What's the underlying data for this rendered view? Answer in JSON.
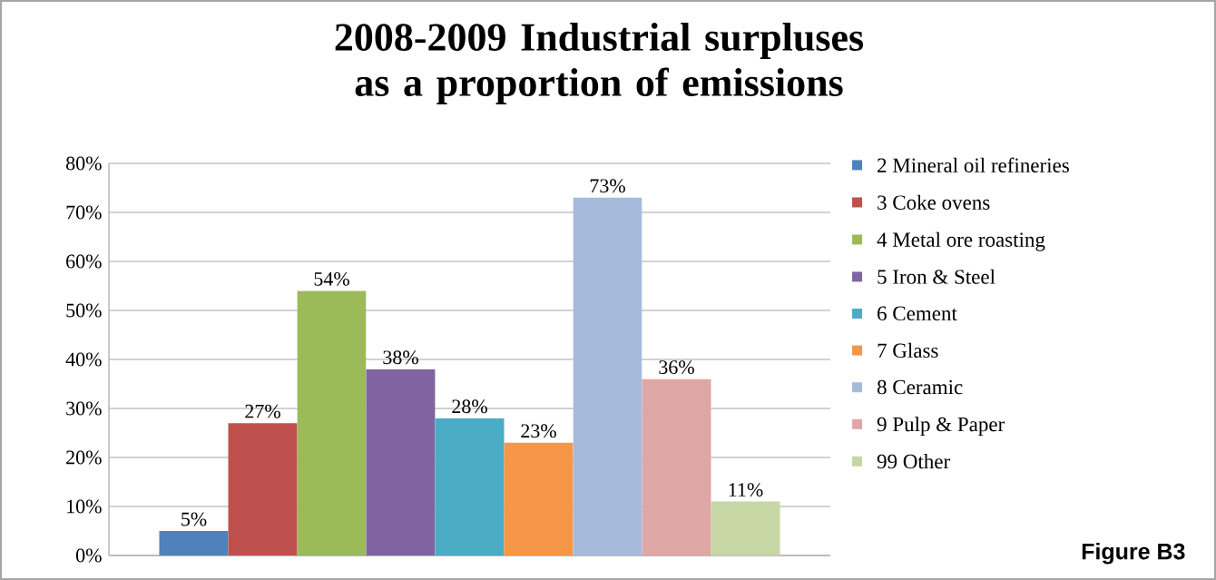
{
  "chart_data": {
    "type": "bar",
    "title": "2008-2009 Industrial surpluses as a proportion of emissions",
    "categories": [
      null
    ],
    "series": [
      {
        "name": "2 Mineral oil refineries",
        "color": "#4f81bd",
        "values": [
          5
        ],
        "value_labels": [
          "5%"
        ]
      },
      {
        "name": "3 Coke ovens",
        "color": "#c0504d",
        "values": [
          27
        ],
        "value_labels": [
          "27%"
        ]
      },
      {
        "name": "4 Metal ore roasting",
        "color": "#9bbb59",
        "values": [
          54
        ],
        "value_labels": [
          "54%"
        ]
      },
      {
        "name": "5 Iron & Steel",
        "color": "#8064a2",
        "values": [
          38
        ],
        "value_labels": [
          "38%"
        ]
      },
      {
        "name": "6 Cement",
        "color": "#4bacc6",
        "values": [
          28
        ],
        "value_labels": [
          "28%"
        ]
      },
      {
        "name": "7 Glass",
        "color": "#f79646",
        "values": [
          23
        ],
        "value_labels": [
          "23%"
        ]
      },
      {
        "name": "8 Ceramic",
        "color": "#a6bbdb",
        "values": [
          73
        ],
        "value_labels": [
          "73%"
        ]
      },
      {
        "name": "9 Pulp & Paper",
        "color": "#dea6a5",
        "values": [
          36
        ],
        "value_labels": [
          "36%"
        ]
      },
      {
        "name": "99 Other",
        "color": "#c6d7a5",
        "values": [
          11
        ],
        "value_labels": [
          "11%"
        ]
      }
    ],
    "ylim": [
      0,
      80
    ],
    "yticks": [
      {
        "value": 0,
        "label": "0%"
      },
      {
        "value": 10,
        "label": "10%"
      },
      {
        "value": 20,
        "label": "20%"
      },
      {
        "value": 30,
        "label": "30%"
      },
      {
        "value": 40,
        "label": "40%"
      },
      {
        "value": 50,
        "label": "50%"
      },
      {
        "value": 60,
        "label": "60%"
      },
      {
        "value": 70,
        "label": "70%"
      },
      {
        "value": 80,
        "label": "80%"
      }
    ],
    "grid": "y",
    "legend": "right",
    "annotations": [
      "Figure B3"
    ]
  }
}
